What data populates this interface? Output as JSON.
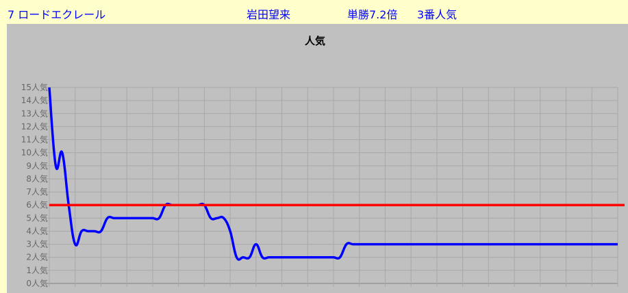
{
  "header": {
    "horse": "7 ロードエクレール",
    "jockey": "岩田望来",
    "odds": "単勝7.2倍",
    "popularity": "3番人気"
  },
  "chart_data": {
    "type": "line",
    "title": "人気",
    "y_tick_labels": [
      "0人気",
      "1人気",
      "2人気",
      "3人気",
      "4人気",
      "5人気",
      "6人気",
      "7人気",
      "8人気",
      "9人気",
      "10人気",
      "11人気",
      "12人気",
      "13人気",
      "14人気",
      "15人気"
    ],
    "ylim": [
      0,
      15
    ],
    "grid": true,
    "x_tick_count": 23,
    "series": [
      {
        "color": "#0000FF",
        "values": [
          15,
          9,
          10,
          6,
          3,
          4,
          4,
          4,
          4,
          5,
          5,
          5,
          5,
          5,
          5,
          5,
          5,
          5,
          6,
          6,
          6,
          6,
          6,
          6,
          6,
          5,
          5,
          5,
          4,
          2,
          2,
          2,
          3,
          2,
          2,
          2,
          2,
          2,
          2,
          2,
          2,
          2,
          2,
          2,
          2,
          2,
          3,
          3,
          3,
          3,
          3,
          3,
          3,
          3,
          3,
          3,
          3,
          3,
          3,
          3,
          3,
          3,
          3,
          3,
          3,
          3,
          3,
          3,
          3,
          3,
          3,
          3,
          3,
          3,
          3,
          3,
          3,
          3,
          3,
          3,
          3,
          3,
          3,
          3,
          3,
          3,
          3,
          3,
          3
        ]
      },
      {
        "color": "#FF0000",
        "constant": 6
      }
    ]
  }
}
